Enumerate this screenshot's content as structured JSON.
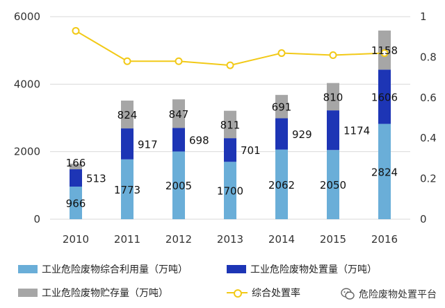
{
  "chart_data": {
    "type": "bar",
    "subtype": "stacked-bar-with-line",
    "categories": [
      "2010",
      "2011",
      "2012",
      "2013",
      "2014",
      "2015",
      "2016"
    ],
    "series": [
      {
        "name": "工业危险废物综合利用量（万吨）",
        "kind": "bar",
        "color": "#6aaed8",
        "values": [
          966,
          1773,
          2005,
          1700,
          2062,
          2050,
          2824
        ]
      },
      {
        "name": "工业危险废物处置量（万吨）",
        "kind": "bar",
        "color": "#1d35b5",
        "values": [
          513,
          917,
          698,
          701,
          929,
          1174,
          1606
        ]
      },
      {
        "name": "工业危险废物贮存量（万吨）",
        "kind": "bar",
        "color": "#a6a6a6",
        "values": [
          166,
          824,
          847,
          811,
          691,
          810,
          1158
        ]
      },
      {
        "name": "综合处置率",
        "kind": "line",
        "axis": "right",
        "color": "#f2c916",
        "values": [
          0.93,
          0.78,
          0.78,
          0.76,
          0.82,
          0.81,
          0.82
        ]
      }
    ],
    "y_left": {
      "range": [
        0,
        6000
      ],
      "ticks": [
        "0",
        "2000",
        "4000",
        "6000"
      ]
    },
    "y_right": {
      "range": [
        0,
        1
      ],
      "ticks": [
        "0",
        "0.2",
        "0.4",
        "0.6",
        "0.8",
        "1"
      ]
    },
    "grid": true,
    "legend_position": "bottom"
  },
  "watermark": {
    "text": "危险废物处置平台",
    "icon": "wechat-icon"
  }
}
